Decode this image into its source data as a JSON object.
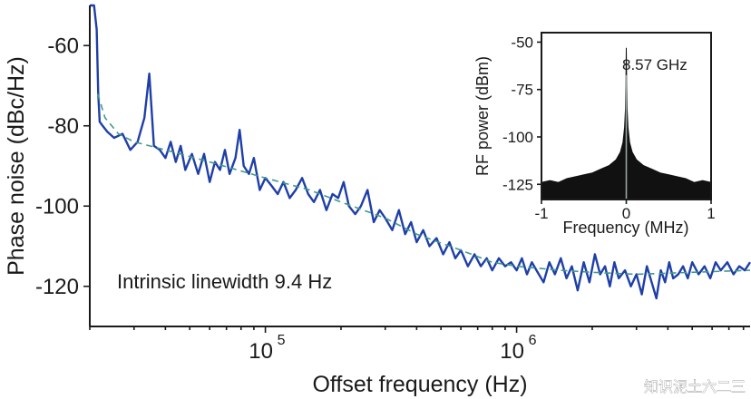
{
  "chart_data": [
    {
      "type": "line",
      "xscale": "log",
      "xlabel": "Offset frequency (Hz)",
      "ylabel": "Phase noise (dBc/Hz)",
      "xlim": [
        20000,
        8500000
      ],
      "ylim": [
        -130,
        -50
      ],
      "xticks": [
        {
          "value": 100000,
          "base": "10",
          "exp": "5"
        },
        {
          "value": 1000000,
          "base": "10",
          "exp": "6"
        }
      ],
      "yticks": [
        -60,
        -80,
        -100,
        -120
      ],
      "annotation": "Intrinsic linewidth 9.4 Hz",
      "series": [
        {
          "color": "#1f3fa8",
          "style": "measured",
          "points": [
            [
              20000,
              -50
            ],
            [
              20800,
              -50
            ],
            [
              21300,
              -56
            ],
            [
              21600,
              -72
            ],
            [
              21900,
              -79
            ],
            [
              22500,
              -80
            ],
            [
              23500,
              -81.5
            ],
            [
              25000,
              -83
            ],
            [
              27000,
              -82
            ],
            [
              29000,
              -86
            ],
            [
              31000,
              -84
            ],
            [
              33000,
              -78
            ],
            [
              34500,
              -67
            ],
            [
              36000,
              -85
            ],
            [
              38000,
              -86
            ],
            [
              40000,
              -88
            ],
            [
              42000,
              -84
            ],
            [
              44000,
              -89
            ],
            [
              46000,
              -85
            ],
            [
              48000,
              -91
            ],
            [
              51000,
              -87
            ],
            [
              54000,
              -92
            ],
            [
              57000,
              -87
            ],
            [
              60000,
              -94
            ],
            [
              63000,
              -89
            ],
            [
              66000,
              -91
            ],
            [
              69000,
              -86
            ],
            [
              72000,
              -92
            ],
            [
              76000,
              -88
            ],
            [
              79000,
              -81
            ],
            [
              82000,
              -90
            ],
            [
              86000,
              -92
            ],
            [
              90000,
              -88
            ],
            [
              95000,
              -96
            ],
            [
              100000,
              -93
            ],
            [
              106000,
              -95
            ],
            [
              112000,
              -97
            ],
            [
              118000,
              -94
            ],
            [
              125000,
              -98
            ],
            [
              132000,
              -96
            ],
            [
              140000,
              -93
            ],
            [
              148000,
              -97
            ],
            [
              156000,
              -99
            ],
            [
              165000,
              -96
            ],
            [
              175000,
              -101
            ],
            [
              185000,
              -97
            ],
            [
              195000,
              -98
            ],
            [
              205000,
              -94
            ],
            [
              215000,
              -100
            ],
            [
              228000,
              -102
            ],
            [
              240000,
              -100
            ],
            [
              255000,
              -96
            ],
            [
              270000,
              -104
            ],
            [
              285000,
              -101
            ],
            [
              300000,
              -103
            ],
            [
              320000,
              -106
            ],
            [
              340000,
              -101
            ],
            [
              360000,
              -107
            ],
            [
              380000,
              -104
            ],
            [
              400000,
              -109
            ],
            [
              425000,
              -106
            ],
            [
              450000,
              -110
            ],
            [
              480000,
              -108
            ],
            [
              510000,
              -112
            ],
            [
              540000,
              -109
            ],
            [
              570000,
              -113
            ],
            [
              600000,
              -111
            ],
            [
              640000,
              -115
            ],
            [
              680000,
              -112
            ],
            [
              720000,
              -115
            ],
            [
              760000,
              -113
            ],
            [
              800000,
              -116
            ],
            [
              850000,
              -113
            ],
            [
              900000,
              -115
            ],
            [
              950000,
              -114
            ],
            [
              1000000,
              -116
            ],
            [
              1050000,
              -113
            ],
            [
              1100000,
              -117
            ],
            [
              1150000,
              -114
            ],
            [
              1200000,
              -116
            ],
            [
              1280000,
              -119
            ],
            [
              1350000,
              -114
            ],
            [
              1420000,
              -117
            ],
            [
              1500000,
              -113
            ],
            [
              1580000,
              -118
            ],
            [
              1660000,
              -115
            ],
            [
              1750000,
              -121
            ],
            [
              1850000,
              -114
            ],
            [
              1950000,
              -119
            ],
            [
              2050000,
              -112
            ],
            [
              2150000,
              -117
            ],
            [
              2250000,
              -115
            ],
            [
              2350000,
              -120
            ],
            [
              2450000,
              -114
            ],
            [
              2550000,
              -118
            ],
            [
              2700000,
              -116
            ],
            [
              2850000,
              -120
            ],
            [
              3000000,
              -117
            ],
            [
              3150000,
              -122
            ],
            [
              3300000,
              -115
            ],
            [
              3450000,
              -119
            ],
            [
              3600000,
              -123
            ],
            [
              3750000,
              -116
            ],
            [
              3900000,
              -119
            ],
            [
              4050000,
              -114
            ],
            [
              4200000,
              -118
            ],
            [
              4400000,
              -117
            ],
            [
              4600000,
              -115
            ],
            [
              4800000,
              -118
            ],
            [
              5000000,
              -114
            ],
            [
              5300000,
              -117
            ],
            [
              5600000,
              -115
            ],
            [
              5900000,
              -118
            ],
            [
              6200000,
              -114
            ],
            [
              6500000,
              -116
            ],
            [
              6900000,
              -114
            ],
            [
              7300000,
              -117
            ],
            [
              7700000,
              -115
            ],
            [
              8100000,
              -116
            ],
            [
              8500000,
              -114
            ]
          ]
        },
        {
          "color": "#3f9a8c",
          "style": "dashed-fit",
          "points": [
            [
              21500,
              -72
            ],
            [
              23000,
              -78
            ],
            [
              26000,
              -82
            ],
            [
              30000,
              -84
            ],
            [
              40000,
              -86
            ],
            [
              60000,
              -89
            ],
            [
              100000,
              -93
            ],
            [
              150000,
              -96
            ],
            [
              200000,
              -99
            ],
            [
              300000,
              -103
            ],
            [
              400000,
              -107
            ],
            [
              600000,
              -111
            ],
            [
              800000,
              -114
            ],
            [
              1000000,
              -115
            ],
            [
              1500000,
              -116
            ],
            [
              2000000,
              -116.5
            ],
            [
              3000000,
              -117
            ],
            [
              5000000,
              -116.5
            ],
            [
              8500000,
              -116
            ]
          ]
        }
      ]
    },
    {
      "type": "area",
      "label": "inset",
      "xlabel": "Frequency (MHz)",
      "ylabel": "RF power (dBm)",
      "xlim": [
        -1,
        1
      ],
      "ylim": [
        -133,
        -45
      ],
      "xticks": [
        "-1",
        "0",
        "1"
      ],
      "yticks": [
        -50,
        -75,
        -100,
        -125
      ],
      "annotation": "8.57 GHz",
      "color": "#111111",
      "centerline_color": "#9aa4a4",
      "points": [
        [
          -1.0,
          -124
        ],
        [
          -0.9,
          -123
        ],
        [
          -0.8,
          -124
        ],
        [
          -0.7,
          -122
        ],
        [
          -0.6,
          -121
        ],
        [
          -0.5,
          -120
        ],
        [
          -0.4,
          -119
        ],
        [
          -0.3,
          -117
        ],
        [
          -0.2,
          -115
        ],
        [
          -0.12,
          -112
        ],
        [
          -0.07,
          -108
        ],
        [
          -0.04,
          -103
        ],
        [
          -0.02,
          -95
        ],
        [
          -0.01,
          -85
        ],
        [
          -0.004,
          -70
        ],
        [
          0,
          -53
        ],
        [
          0.004,
          -70
        ],
        [
          0.01,
          -85
        ],
        [
          0.02,
          -95
        ],
        [
          0.04,
          -103
        ],
        [
          0.07,
          -108
        ],
        [
          0.12,
          -112
        ],
        [
          0.2,
          -115
        ],
        [
          0.3,
          -117
        ],
        [
          0.4,
          -119
        ],
        [
          0.5,
          -120
        ],
        [
          0.6,
          -121
        ],
        [
          0.7,
          -122
        ],
        [
          0.8,
          -124
        ],
        [
          0.9,
          -123
        ],
        [
          1.0,
          -124
        ]
      ]
    }
  ],
  "watermark": "知识泥土六二三"
}
